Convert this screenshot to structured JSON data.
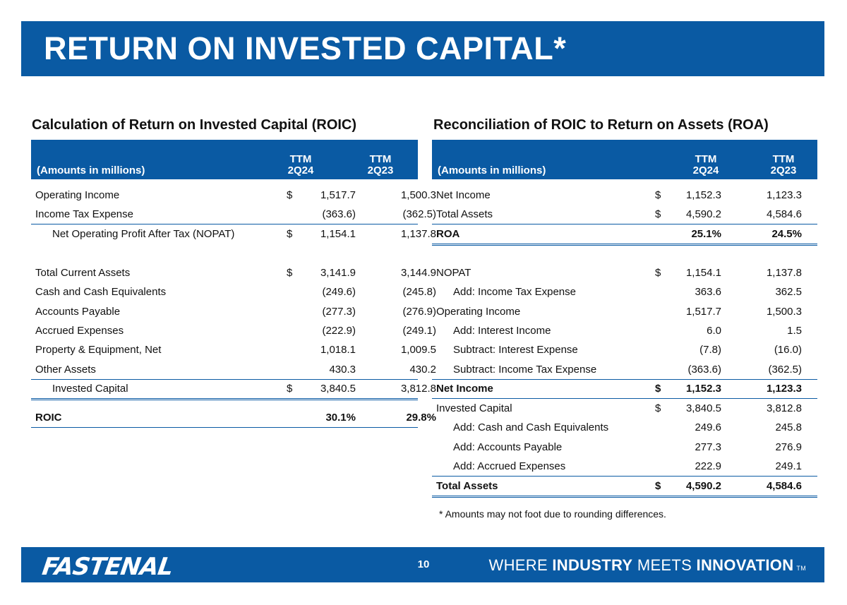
{
  "title": "RETURN ON INVESTED CAPITAL*",
  "left": {
    "section_title": "Calculation of Return on Invested Capital (ROIC)",
    "header": {
      "amounts": "(Amounts in millions)",
      "col1_line1": "TTM",
      "col1_line2": "2Q24",
      "col2_line1": "TTM",
      "col2_line2": "2Q23"
    },
    "rows": [
      {
        "label": "Operating Income",
        "dollar": "$",
        "v1": "1,517.7",
        "v2": "1,500.3"
      },
      {
        "label": "Income Tax Expense",
        "dollar": "",
        "v1": "(363.6)",
        "v2": "(362.5)"
      },
      {
        "label": "Net Operating Profit After Tax (NOPAT)",
        "dollar": "$",
        "v1": "1,154.1",
        "v2": "1,137.8"
      },
      {
        "label": "Total Current Assets",
        "dollar": "$",
        "v1": "3,141.9",
        "v2": "3,144.9"
      },
      {
        "label": "Cash and Cash Equivalents",
        "dollar": "",
        "v1": "(249.6)",
        "v2": "(245.8)"
      },
      {
        "label": "Accounts Payable",
        "dollar": "",
        "v1": "(277.3)",
        "v2": "(276.9)"
      },
      {
        "label": "Accrued Expenses",
        "dollar": "",
        "v1": "(222.9)",
        "v2": "(249.1)"
      },
      {
        "label": "Property & Equipment, Net",
        "dollar": "",
        "v1": "1,018.1",
        "v2": "1,009.5"
      },
      {
        "label": "Other Assets",
        "dollar": "",
        "v1": "430.3",
        "v2": "430.2"
      },
      {
        "label": "Invested Capital",
        "dollar": "$",
        "v1": "3,840.5",
        "v2": "3,812.8"
      },
      {
        "label": "ROIC",
        "dollar": "",
        "v1": "30.1%",
        "v2": "29.8%"
      }
    ]
  },
  "right": {
    "section_title": "Reconciliation of ROIC to Return on Assets (ROA)",
    "header": {
      "amounts": "(Amounts in millions)",
      "col1_line1": "TTM",
      "col1_line2": "2Q24",
      "col2_line1": "TTM",
      "col2_line2": "2Q23"
    },
    "rows": [
      {
        "label": "Net Income",
        "dollar": "$",
        "v1": "1,152.3",
        "v2": "1,123.3"
      },
      {
        "label": "Total Assets",
        "dollar": "$",
        "v1": "4,590.2",
        "v2": "4,584.6"
      },
      {
        "label": "ROA",
        "dollar": "",
        "v1": "25.1%",
        "v2": "24.5%"
      },
      {
        "label": "NOPAT",
        "dollar": "$",
        "v1": "1,154.1",
        "v2": "1,137.8"
      },
      {
        "label": "Add: Income Tax Expense",
        "dollar": "",
        "v1": "363.6",
        "v2": "362.5"
      },
      {
        "label": "Operating Income",
        "dollar": "",
        "v1": "1,517.7",
        "v2": "1,500.3"
      },
      {
        "label": "Add: Interest Income",
        "dollar": "",
        "v1": "6.0",
        "v2": "1.5"
      },
      {
        "label": "Subtract: Interest Expense",
        "dollar": "",
        "v1": "(7.8)",
        "v2": "(16.0)"
      },
      {
        "label": "Subtract: Income Tax Expense",
        "dollar": "",
        "v1": "(363.6)",
        "v2": "(362.5)"
      },
      {
        "label": "Net Income",
        "dollar": "$",
        "v1": "1,152.3",
        "v2": "1,123.3"
      },
      {
        "label": "Invested Capital",
        "dollar": "$",
        "v1": "3,840.5",
        "v2": "3,812.8"
      },
      {
        "label": "Add: Cash and Cash Equivalents",
        "dollar": "",
        "v1": "249.6",
        "v2": "245.8"
      },
      {
        "label": "Add: Accounts Payable",
        "dollar": "",
        "v1": "277.3",
        "v2": "276.9"
      },
      {
        "label": "Add: Accrued Expenses",
        "dollar": "",
        "v1": "222.9",
        "v2": "249.1"
      },
      {
        "label": "Total Assets",
        "dollar": "$",
        "v1": "4,590.2",
        "v2": "4,584.6"
      }
    ]
  },
  "note": "* Amounts may not foot due to rounding differences.",
  "footer": {
    "logo": "FASTENAL",
    "page_number": "10",
    "tagline_1": "WHERE ",
    "tagline_2": "INDUSTRY",
    "tagline_3": " MEETS ",
    "tagline_4": "INNOVATION",
    "tagline_tm": "TM"
  }
}
